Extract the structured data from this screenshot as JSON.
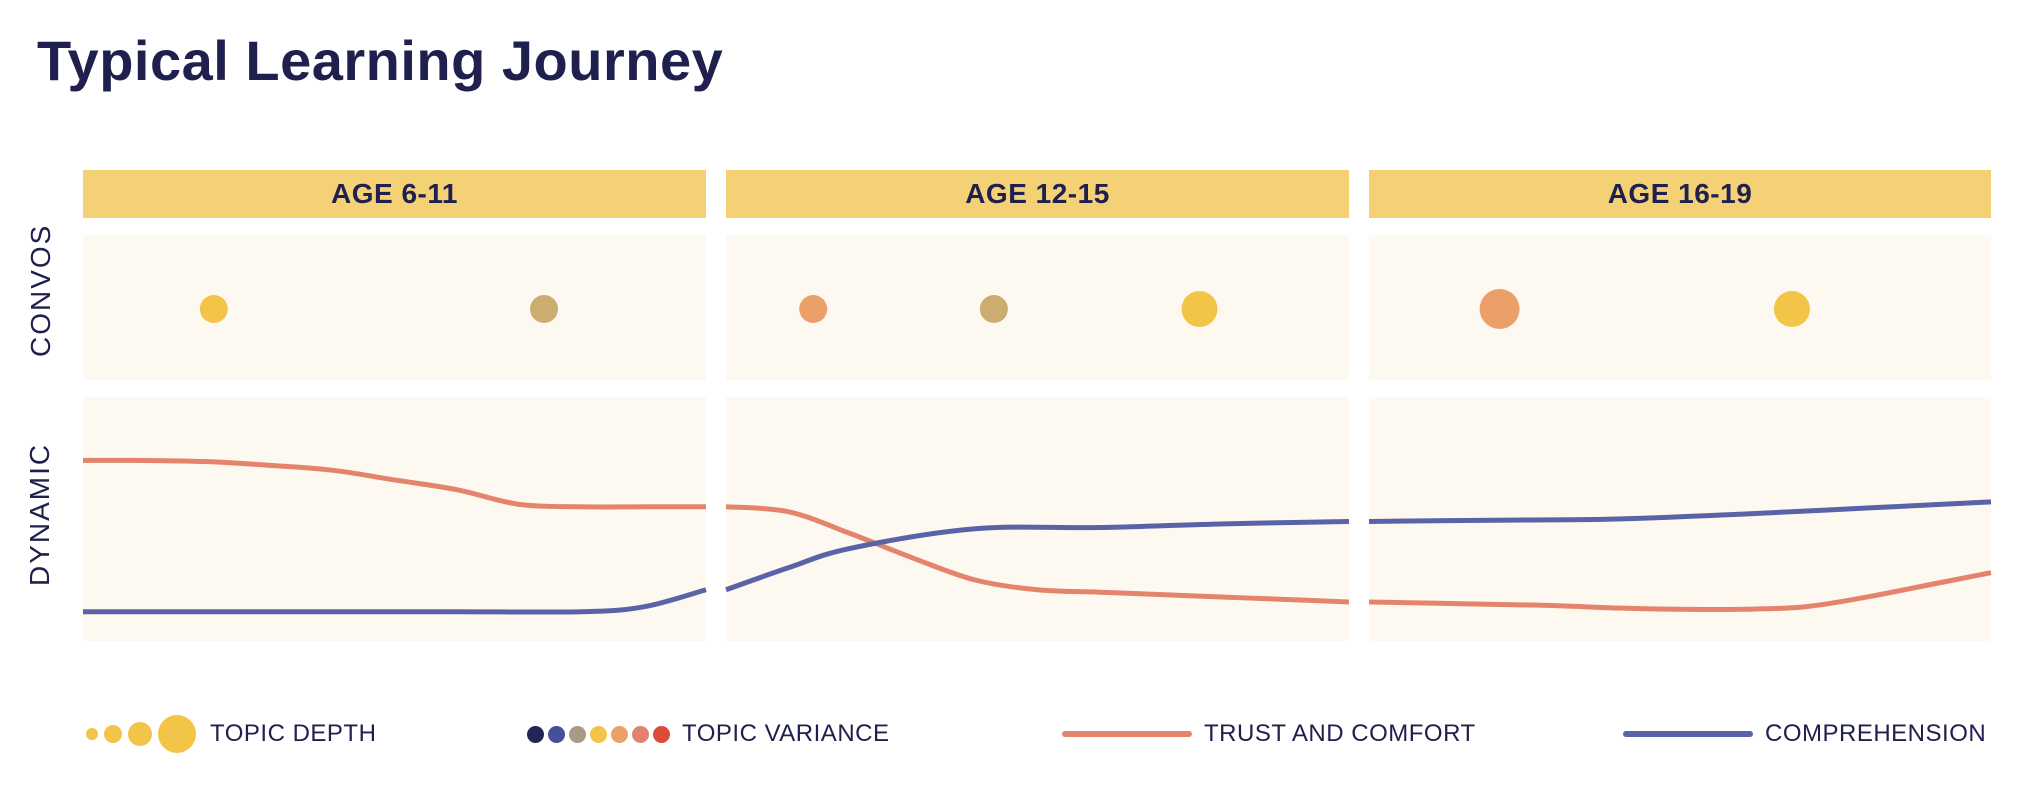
{
  "title": "Typical Learning Journey",
  "row_labels": {
    "convos": "CONVOS",
    "dynamic": "DYNAMIC"
  },
  "stages": [
    {
      "label": "AGE 6-11"
    },
    {
      "label": "AGE 12-15"
    },
    {
      "label": "AGE 16-19"
    }
  ],
  "colors": {
    "header_bg": "#f4d174",
    "panel_bg": "#fdf9f0",
    "trust": "#e5846c",
    "comprehension": "#5a63a8",
    "title": "#20204f",
    "variance_palette": [
      "#252454",
      "#454f9c",
      "#a89a85",
      "#f2c448",
      "#eba06a",
      "#e48272",
      "#dc4b3a"
    ]
  },
  "legend": {
    "topic_depth": "TOPIC DEPTH",
    "topic_variance": "TOPIC VARIANCE",
    "trust": "TRUST AND COMFORT",
    "comprehension": "COMPREHENSION"
  },
  "chart_data": {
    "type": "line",
    "series": [
      {
        "name": "TRUST AND COMFORT",
        "key": "trust",
        "x": [
          0,
          0.1,
          0.2,
          0.3,
          0.4,
          0.5,
          0.6,
          0.7,
          0.8,
          0.9,
          1.0,
          1.1,
          1.2,
          1.3,
          1.4,
          1.5,
          1.6,
          1.7,
          1.8,
          1.9,
          2.0,
          2.1,
          2.2,
          2.3,
          2.4,
          2.5,
          2.6,
          2.7,
          2.8,
          2.9,
          3.0
        ],
        "y": [
          0.74,
          0.74,
          0.735,
          0.72,
          0.7,
          0.66,
          0.62,
          0.56,
          0.55,
          0.55,
          0.55,
          0.53,
          0.44,
          0.34,
          0.25,
          0.21,
          0.2,
          0.19,
          0.18,
          0.17,
          0.16,
          0.155,
          0.15,
          0.145,
          0.135,
          0.13,
          0.13,
          0.14,
          0.18,
          0.23,
          0.28
        ]
      },
      {
        "name": "COMPREHENSION",
        "key": "comprehension",
        "x": [
          0,
          0.2,
          0.4,
          0.6,
          0.8,
          0.9,
          1.0,
          1.1,
          1.2,
          1.4,
          1.6,
          1.8,
          2.0,
          2.2,
          2.4,
          2.6,
          2.8,
          3.0
        ],
        "y": [
          0.12,
          0.12,
          0.12,
          0.12,
          0.12,
          0.14,
          0.21,
          0.3,
          0.38,
          0.46,
          0.465,
          0.48,
          0.49,
          0.495,
          0.5,
          0.52,
          0.545,
          0.57
        ]
      }
    ],
    "convos": [
      {
        "stage": 0,
        "pos": 0.21,
        "size": 2,
        "color": "#f2c448"
      },
      {
        "stage": 0,
        "pos": 0.74,
        "size": 2,
        "color": "#cdac6f"
      },
      {
        "stage": 1,
        "pos": 0.14,
        "size": 2,
        "color": "#eba06a"
      },
      {
        "stage": 1,
        "pos": 0.43,
        "size": 2,
        "color": "#cdac6f"
      },
      {
        "stage": 1,
        "pos": 0.76,
        "size": 3,
        "color": "#f2c448"
      },
      {
        "stage": 2,
        "pos": 0.21,
        "size": 4,
        "color": "#eba06a"
      },
      {
        "stage": 2,
        "pos": 0.68,
        "size": 3,
        "color": "#f2c448"
      }
    ],
    "legend_depth_sizes": [
      1,
      2,
      3,
      4
    ],
    "ylim": [
      0,
      1
    ]
  }
}
